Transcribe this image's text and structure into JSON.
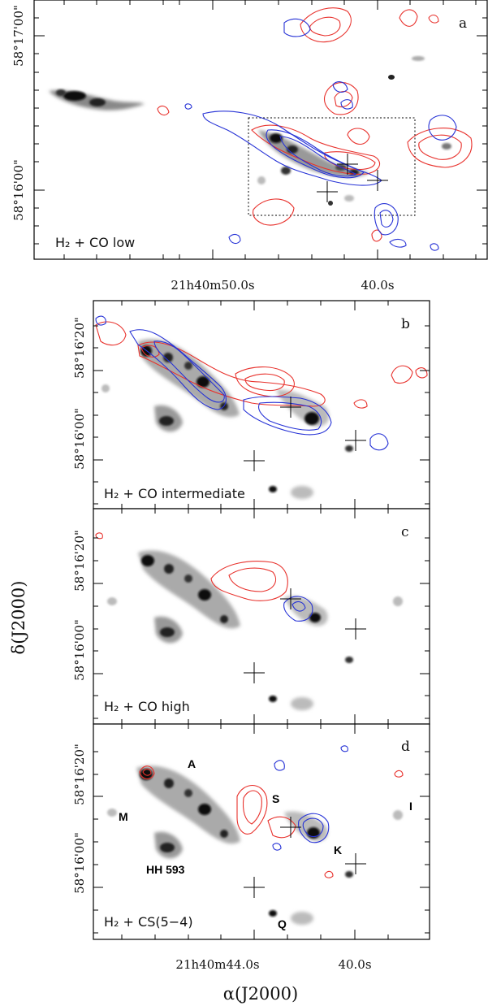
{
  "figure": {
    "x_axis_title": "α(J2000)",
    "y_axis_title": "δ(J2000)",
    "panel_a": {
      "letter": "a",
      "label": "H₂ + CO low",
      "ra_ticks": [
        "21h40m50.0s",
        "40.0s"
      ],
      "dec_ticks": [
        "58°17'00\"",
        "58°16'00\""
      ]
    },
    "panel_b": {
      "letter": "b",
      "label": "H₂ + CO intermediate",
      "dec_ticks": [
        "58°16'20\"",
        "58°16'00\""
      ]
    },
    "panel_c": {
      "letter": "c",
      "label": "H₂ + CO high",
      "dec_ticks": [
        "58°16'20\"",
        "58°16'00\""
      ]
    },
    "panel_d": {
      "letter": "d",
      "label": "H₂ + CS(5−4)",
      "ra_ticks": [
        "21h40m44.0s",
        "40.0s"
      ],
      "dec_ticks": [
        "58°16'20\"",
        "58°16'00\""
      ],
      "sources": [
        "A",
        "M",
        "HH 593",
        "S",
        "K",
        "I",
        "Q"
      ]
    },
    "contour_colors": {
      "redshifted": "#e8312c",
      "blueshifted": "#2632d6",
      "image": "#222222"
    }
  }
}
